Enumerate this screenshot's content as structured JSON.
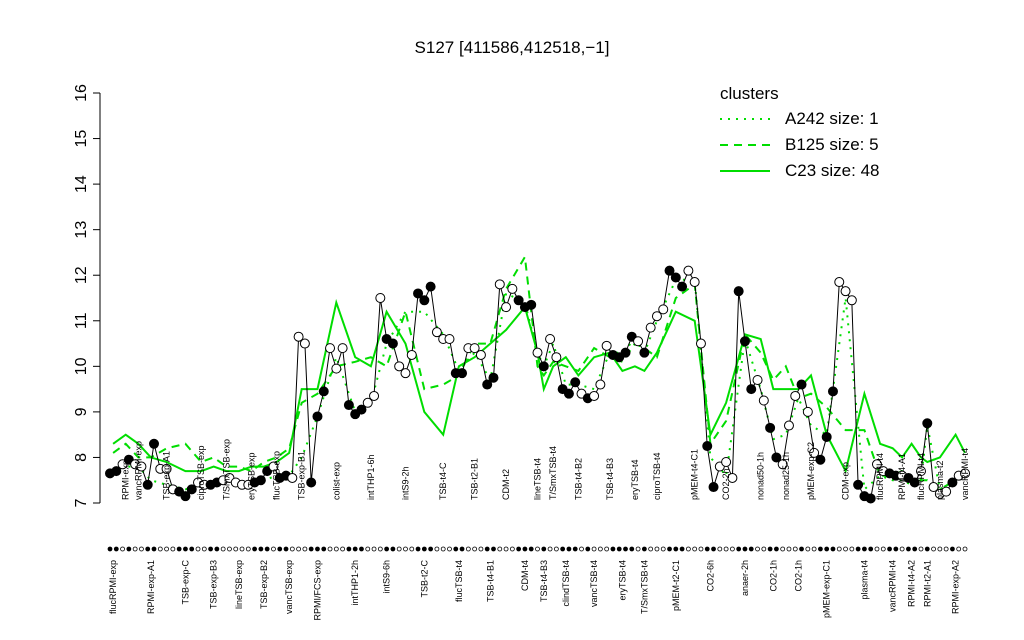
{
  "chart_data": {
    "type": "line",
    "title": "S127 [411586,412518,−1]",
    "ylim": [
      7,
      16
    ],
    "yticks": [
      7,
      8,
      9,
      10,
      11,
      12,
      13,
      14,
      15,
      16
    ],
    "line_color": "#000000",
    "legend": {
      "title": "clusters",
      "position": "topright",
      "color": "#00dd00"
    },
    "groups": [
      {
        "label": "flucRPMI-exp",
        "side": "bottom",
        "values": [
          7.65,
          7.7
        ],
        "colors": [
          "black",
          "black"
        ]
      },
      {
        "label": "RPMI-exp",
        "side": "top",
        "values": [
          7.85,
          7.95
        ],
        "colors": [
          "white",
          "black"
        ]
      },
      {
        "label": "vancRPMI-exp",
        "side": "top",
        "values": [
          7.85,
          7.8
        ],
        "colors": [
          "white",
          "white"
        ]
      },
      {
        "label": "RPMI-exp-A1",
        "side": "bottom",
        "values": [
          7.4,
          8.3
        ],
        "colors": [
          "black",
          "black"
        ]
      },
      {
        "label": "TSB-exp-A1",
        "side": "top",
        "values": [
          7.75,
          7.75,
          7.3
        ],
        "colors": [
          "white",
          "white",
          "white"
        ]
      },
      {
        "label": "TSB-exp-C",
        "side": "bottom",
        "values": [
          7.25,
          7.15,
          7.3
        ],
        "colors": [
          "black",
          "black",
          "black"
        ]
      },
      {
        "label": "ciproTSB-exp",
        "side": "top",
        "values": [
          7.45,
          7.4
        ],
        "colors": [
          "white",
          "white"
        ]
      },
      {
        "label": "TSB-exp-B3",
        "side": "bottom",
        "values": [
          7.4,
          7.45
        ],
        "colors": [
          "black",
          "black"
        ]
      },
      {
        "label": "T/SmxTSB-exp",
        "side": "top",
        "values": [
          7.5,
          7.55
        ],
        "colors": [
          "white",
          "white"
        ]
      },
      {
        "label": "lineTSB-exp",
        "side": "bottom",
        "values": [
          7.45,
          7.4
        ],
        "colors": [
          "white",
          "white"
        ]
      },
      {
        "label": "eryTSB-exp",
        "side": "top",
        "values": [
          7.4,
          7.45
        ],
        "colors": [
          "white",
          "black"
        ]
      },
      {
        "label": "TSB-exp-B2",
        "side": "bottom",
        "values": [
          7.5,
          7.7
        ],
        "colors": [
          "black",
          "black"
        ]
      },
      {
        "label": "flucTSB-exp",
        "side": "top",
        "values": [
          7.8,
          7.55
        ],
        "colors": [
          "white",
          "black"
        ]
      },
      {
        "label": "vancTSB-exp",
        "side": "bottom",
        "values": [
          7.6,
          7.55
        ],
        "colors": [
          "black",
          "white"
        ]
      },
      {
        "label": "TSB-exp-B1",
        "side": "top",
        "values": [
          10.65,
          10.5
        ],
        "colors": [
          "white",
          "white"
        ]
      },
      {
        "label": "RPMI/FCS-exp",
        "side": "bottom",
        "values": [
          7.45,
          8.9,
          9.45
        ],
        "colors": [
          "black",
          "black",
          "black"
        ]
      },
      {
        "label": "colist-exp",
        "side": "top",
        "values": [
          10.4,
          9.95,
          10.4
        ],
        "colors": [
          "white",
          "white",
          "white"
        ]
      },
      {
        "label": "intTHP1-2h",
        "side": "bottom",
        "values": [
          9.15,
          8.95,
          9.05
        ],
        "colors": [
          "black",
          "black",
          "black"
        ]
      },
      {
        "label": "intTHP1-6h",
        "side": "top",
        "values": [
          9.2,
          9.35
        ],
        "colors": [
          "white",
          "white"
        ]
      },
      {
        "label": "intS9-6h",
        "side": "bottom",
        "values": [
          11.5,
          10.6,
          10.5
        ],
        "colors": [
          "white",
          "black",
          "black"
        ]
      },
      {
        "label": "intS9-2h",
        "side": "top",
        "values": [
          10.0,
          9.85,
          10.25
        ],
        "colors": [
          "white",
          "white",
          "white"
        ]
      },
      {
        "label": "TSB-t2-C",
        "side": "bottom",
        "values": [
          11.6,
          11.45,
          11.75
        ],
        "colors": [
          "black",
          "black",
          "black"
        ]
      },
      {
        "label": "TSB-t4-C",
        "side": "top",
        "values": [
          10.75,
          10.6,
          10.6
        ],
        "colors": [
          "white",
          "white",
          "white"
        ]
      },
      {
        "label": "flucTSB-t4",
        "side": "bottom",
        "values": [
          9.85,
          9.85
        ],
        "colors": [
          "black",
          "black"
        ]
      },
      {
        "label": "TSB-t2-B1",
        "side": "top",
        "values": [
          10.4,
          10.4,
          10.25
        ],
        "colors": [
          "white",
          "white",
          "white"
        ]
      },
      {
        "label": "TSB-t4-B1",
        "side": "bottom",
        "values": [
          9.6,
          9.75
        ],
        "colors": [
          "black",
          "black"
        ]
      },
      {
        "label": "CDM-t2",
        "side": "top",
        "values": [
          11.8,
          11.3,
          11.7
        ],
        "colors": [
          "white",
          "white",
          "white"
        ]
      },
      {
        "label": "CDM-t4",
        "side": "bottom",
        "values": [
          11.45,
          11.3,
          11.35
        ],
        "colors": [
          "black",
          "black",
          "black"
        ]
      },
      {
        "label": "lineTSB-t4",
        "side": "top",
        "values": [
          10.3
        ],
        "colors": [
          "white"
        ]
      },
      {
        "label": "TSB-t4-B3",
        "side": "bottom",
        "values": [
          10.0
        ],
        "colors": [
          "black"
        ]
      },
      {
        "label": "T/SmxTSB-t4",
        "side": "top",
        "values": [
          10.6,
          10.2
        ],
        "colors": [
          "white",
          "white"
        ]
      },
      {
        "label": "clindTSB-t4",
        "side": "bottom",
        "values": [
          9.5,
          9.4
        ],
        "colors": [
          "black",
          "black"
        ]
      },
      {
        "label": "TSB-t4-B2",
        "side": "top",
        "values": [
          9.65,
          9.4
        ],
        "colors": [
          "black",
          "white"
        ]
      },
      {
        "label": "vancTSB-t4",
        "side": "bottom",
        "values": [
          9.3,
          9.35,
          9.6
        ],
        "colors": [
          "black",
          "white",
          "white"
        ]
      },
      {
        "label": "TSB-t4-B3",
        "side": "top",
        "values": [
          10.45,
          10.25
        ],
        "colors": [
          "white",
          "black"
        ]
      },
      {
        "label": "eryTSB-t4",
        "side": "bottom",
        "values": [
          10.2,
          10.3
        ],
        "colors": [
          "black",
          "black"
        ]
      },
      {
        "label": "eryTSB-t4",
        "side": "top",
        "values": [
          10.65,
          10.55
        ],
        "colors": [
          "black",
          "white"
        ]
      },
      {
        "label": "T/SmxTSB-t4",
        "side": "bottom",
        "values": [
          10.3
        ],
        "colors": [
          "black"
        ]
      },
      {
        "label": "ciproTSB-t4",
        "side": "top",
        "values": [
          10.85,
          11.1,
          11.25
        ],
        "colors": [
          "white",
          "white",
          "white"
        ]
      },
      {
        "label": "pMEM-t2-C1",
        "side": "bottom",
        "values": [
          12.1,
          11.95,
          11.75
        ],
        "colors": [
          "black",
          "black",
          "black"
        ]
      },
      {
        "label": "pMEM-t4-C1",
        "side": "top",
        "values": [
          12.1,
          11.85,
          10.5
        ],
        "colors": [
          "white",
          "white",
          "white"
        ]
      },
      {
        "label": "CO2-6h",
        "side": "bottom",
        "values": [
          8.25,
          7.35
        ],
        "colors": [
          "black",
          "black"
        ]
      },
      {
        "label": "CO2-2h",
        "side": "top",
        "values": [
          7.8,
          7.9,
          7.55
        ],
        "colors": [
          "white",
          "white",
          "white"
        ]
      },
      {
        "label": "anaer-2h",
        "side": "bottom",
        "values": [
          11.65,
          10.55,
          9.5
        ],
        "colors": [
          "black",
          "black",
          "black"
        ]
      },
      {
        "label": "nonad50-1h",
        "side": "top",
        "values": [
          9.7,
          9.25
        ],
        "colors": [
          "white",
          "white"
        ]
      },
      {
        "label": "CO2-1h",
        "side": "bottom",
        "values": [
          8.65,
          8.0
        ],
        "colors": [
          "black",
          "black"
        ]
      },
      {
        "label": "nonad25-1h",
        "side": "top",
        "values": [
          7.85,
          8.7
        ],
        "colors": [
          "white",
          "white"
        ]
      },
      {
        "label": "CO2-1h",
        "side": "bottom",
        "values": [
          9.35,
          9.6
        ],
        "colors": [
          "white",
          "black"
        ]
      },
      {
        "label": "pMEM-exp-C2",
        "side": "top",
        "values": [
          9.0,
          8.1
        ],
        "colors": [
          "white",
          "white"
        ]
      },
      {
        "label": "pMEM-exp-C1",
        "side": "bottom",
        "values": [
          7.95,
          8.45,
          9.45
        ],
        "colors": [
          "black",
          "black",
          "black"
        ]
      },
      {
        "label": "CDM-exp",
        "side": "top",
        "values": [
          11.85,
          11.65,
          11.45
        ],
        "colors": [
          "white",
          "white",
          "white"
        ]
      },
      {
        "label": "plasma-t4",
        "side": "bottom",
        "values": [
          7.4,
          7.15,
          7.1
        ],
        "colors": [
          "black",
          "black",
          "black"
        ]
      },
      {
        "label": "flucRPMI-t4",
        "side": "top",
        "values": [
          7.85,
          7.7
        ],
        "colors": [
          "white",
          "white"
        ]
      },
      {
        "label": "vancRPMI-t4",
        "side": "bottom",
        "values": [
          7.65,
          7.6
        ],
        "colors": [
          "black",
          "black"
        ]
      },
      {
        "label": "RPMI-t4-A1",
        "side": "top",
        "values": [
          7.6
        ],
        "colors": [
          "white"
        ]
      },
      {
        "label": "RPMI-t4-A2",
        "side": "bottom",
        "values": [
          7.55,
          7.45
        ],
        "colors": [
          "black",
          "black"
        ]
      },
      {
        "label": "flucRPMI-t4",
        "side": "top",
        "values": [
          7.7
        ],
        "colors": [
          "white"
        ]
      },
      {
        "label": "RPMI-t2-A1",
        "side": "bottom",
        "values": [
          8.75
        ],
        "colors": [
          "black"
        ]
      },
      {
        "label": "plasma-t2",
        "side": "top",
        "values": [
          7.35,
          7.2,
          7.25
        ],
        "colors": [
          "white",
          "white",
          "white"
        ]
      },
      {
        "label": "RPMI-exp-A2",
        "side": "bottom",
        "values": [
          7.45,
          7.6
        ],
        "colors": [
          "black",
          "white"
        ]
      },
      {
        "label": "vancRPMI-t4",
        "side": "top",
        "values": [
          7.65
        ],
        "colors": [
          "white"
        ]
      }
    ],
    "series": [
      {
        "name": "A242 size: 1",
        "color": "#00dd00",
        "linestyle": "dotted",
        "values": [
          7.7,
          7.8,
          7.8,
          7.5,
          7.4,
          7.3,
          7.4,
          7.4,
          7.5,
          7.4,
          7.4,
          7.5,
          7.6,
          7.6,
          8.0,
          8.9,
          10.2,
          9.0,
          9.2,
          10.5,
          11.2,
          11.2,
          10.7,
          9.9,
          10.3,
          9.7,
          11.6,
          11.4,
          10.3,
          10.0,
          10.5,
          9.6,
          9.6,
          9.5,
          10.3,
          10.3,
          10.6,
          10.3,
          11.0,
          11.9,
          11.9,
          8.0,
          7.6,
          10.6,
          9.5,
          8.4,
          8.5,
          9.3,
          8.7,
          8.5,
          11.5,
          7.3,
          7.6,
          7.5,
          7.5,
          7.4,
          7.5,
          8.7,
          7.3,
          7.5,
          7.6
        ]
      },
      {
        "name": "B125 size: 5",
        "color": "#00dd00",
        "linestyle": "dashed",
        "values": [
          8.1,
          8.3,
          8.0,
          8.0,
          8.2,
          8.3,
          7.9,
          8.0,
          7.8,
          7.8,
          7.7,
          7.9,
          8.0,
          8.2,
          9.2,
          9.4,
          10.0,
          10.1,
          10.2,
          10.0,
          11.2,
          9.5,
          9.6,
          9.8,
          10.5,
          10.5,
          11.7,
          12.4,
          10.0,
          9.8,
          10.1,
          10.0,
          9.9,
          10.4,
          10.2,
          10.1,
          10.5,
          10.4,
          10.2,
          11.5,
          11.8,
          8.3,
          8.8,
          10.7,
          10.3,
          9.7,
          10.0,
          9.3,
          9.4,
          9.1,
          8.6,
          8.6,
          7.6,
          7.6,
          7.7,
          7.5,
          7.5,
          7.5,
          7.3,
          7.5,
          7.6
        ]
      },
      {
        "name": "C23 size: 48",
        "color": "#00dd00",
        "linestyle": "solid",
        "values": [
          8.3,
          8.5,
          8.3,
          8.0,
          7.9,
          7.7,
          7.7,
          7.8,
          7.7,
          7.7,
          7.8,
          7.8,
          7.9,
          8.1,
          9.5,
          9.5,
          11.4,
          10.2,
          10.0,
          11.2,
          10.5,
          9.0,
          8.5,
          10.0,
          10.2,
          10.5,
          10.8,
          11.3,
          10.3,
          9.5,
          10.0,
          10.2,
          9.8,
          10.2,
          10.3,
          9.9,
          10.0,
          9.9,
          10.3,
          11.2,
          11.0,
          8.5,
          9.2,
          10.7,
          10.6,
          9.5,
          9.5,
          9.5,
          9.8,
          8.5,
          7.7,
          9.4,
          8.3,
          8.2,
          8.0,
          8.3,
          8.0,
          7.9,
          8.0,
          8.5,
          8.1
        ]
      }
    ]
  }
}
